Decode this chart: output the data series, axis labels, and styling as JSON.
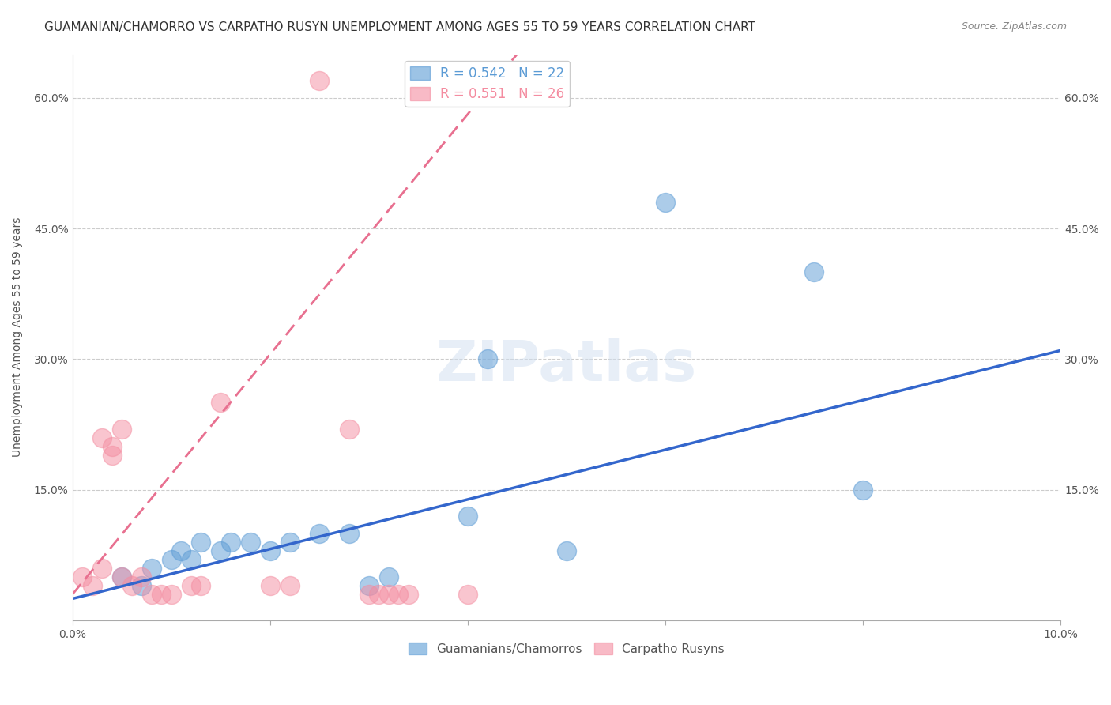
{
  "title": "GUAMANIAN/CHAMORRO VS CARPATHO RUSYN UNEMPLOYMENT AMONG AGES 55 TO 59 YEARS CORRELATION CHART",
  "source": "Source: ZipAtlas.com",
  "xlabel": "",
  "ylabel": "Unemployment Among Ages 55 to 59 years",
  "xlim": [
    0,
    0.1
  ],
  "ylim": [
    0,
    0.65
  ],
  "xticks": [
    0.0,
    0.02,
    0.04,
    0.06,
    0.08,
    0.1
  ],
  "yticks": [
    0.0,
    0.15,
    0.3,
    0.45,
    0.6
  ],
  "ytick_labels": [
    "",
    "15.0%",
    "30.0%",
    "45.0%",
    "60.0%"
  ],
  "xtick_labels": [
    "0.0%",
    "",
    "",
    "",
    "",
    "10.0%"
  ],
  "legend_entries": [
    {
      "label": "R = 0.542   N = 22",
      "color": "#a8c4e0"
    },
    {
      "label": "R = 0.551   N = 26",
      "color": "#f4a7b9"
    }
  ],
  "legend_label_blue": "Guamanians/Chamorros",
  "legend_label_pink": "Carpatho Rusyns",
  "blue_scatter": [
    [
      0.005,
      0.05
    ],
    [
      0.007,
      0.04
    ],
    [
      0.008,
      0.06
    ],
    [
      0.01,
      0.07
    ],
    [
      0.011,
      0.08
    ],
    [
      0.012,
      0.07
    ],
    [
      0.013,
      0.09
    ],
    [
      0.015,
      0.08
    ],
    [
      0.016,
      0.09
    ],
    [
      0.018,
      0.09
    ],
    [
      0.02,
      0.08
    ],
    [
      0.022,
      0.09
    ],
    [
      0.025,
      0.1
    ],
    [
      0.028,
      0.1
    ],
    [
      0.03,
      0.04
    ],
    [
      0.032,
      0.05
    ],
    [
      0.04,
      0.12
    ],
    [
      0.042,
      0.3
    ],
    [
      0.05,
      0.08
    ],
    [
      0.06,
      0.48
    ],
    [
      0.075,
      0.4
    ],
    [
      0.08,
      0.15
    ]
  ],
  "pink_scatter": [
    [
      0.001,
      0.05
    ],
    [
      0.002,
      0.04
    ],
    [
      0.003,
      0.06
    ],
    [
      0.003,
      0.21
    ],
    [
      0.004,
      0.2
    ],
    [
      0.004,
      0.19
    ],
    [
      0.005,
      0.05
    ],
    [
      0.005,
      0.22
    ],
    [
      0.006,
      0.04
    ],
    [
      0.007,
      0.05
    ],
    [
      0.008,
      0.03
    ],
    [
      0.009,
      0.03
    ],
    [
      0.01,
      0.03
    ],
    [
      0.012,
      0.04
    ],
    [
      0.013,
      0.04
    ],
    [
      0.015,
      0.25
    ],
    [
      0.02,
      0.04
    ],
    [
      0.022,
      0.04
    ],
    [
      0.025,
      0.62
    ],
    [
      0.028,
      0.22
    ],
    [
      0.03,
      0.03
    ],
    [
      0.031,
      0.03
    ],
    [
      0.032,
      0.03
    ],
    [
      0.033,
      0.03
    ],
    [
      0.034,
      0.03
    ],
    [
      0.04,
      0.03
    ]
  ],
  "blue_line": {
    "x": [
      0.0,
      0.1
    ],
    "y": [
      0.025,
      0.31
    ]
  },
  "pink_line": {
    "x": [
      0.0,
      0.045
    ],
    "y": [
      0.03,
      0.65
    ]
  },
  "blue_color": "#5b9bd5",
  "pink_color": "#f48ca0",
  "blue_line_color": "#3366cc",
  "pink_line_color": "#e87090",
  "watermark": "ZIPatlas",
  "title_fontsize": 11,
  "axis_label_fontsize": 10,
  "tick_fontsize": 10
}
